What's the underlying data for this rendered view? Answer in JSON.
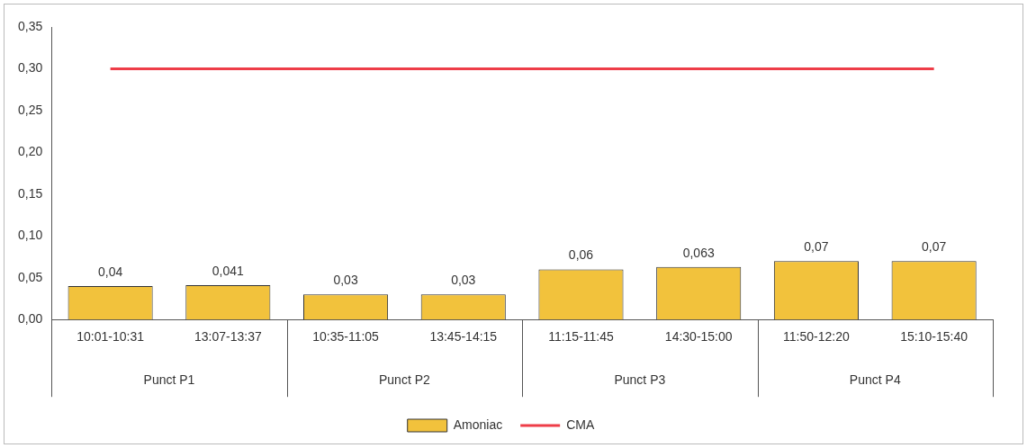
{
  "chart_data": {
    "type": "bar",
    "categories": [
      "10:01-10:31",
      "13:07-13:37",
      "10:35-11:05",
      "13:45-14:15",
      "11:15-11:45",
      "14:30-15:00",
      "11:50-12:20",
      "15:10-15:40"
    ],
    "series": [
      {
        "name": "Amoniac",
        "color": "#f2c23c",
        "values": [
          0.04,
          0.041,
          0.03,
          0.03,
          0.06,
          0.063,
          0.07,
          0.07
        ],
        "value_labels": [
          "0,04",
          "0,041",
          "0,03",
          "0,03",
          "0,06",
          "0,063",
          "0,07",
          "0,07"
        ]
      },
      {
        "name": "CMA",
        "type": "line",
        "color": "#ee3d48",
        "values": [
          0.3,
          0.3,
          0.3,
          0.3,
          0.3,
          0.3,
          0.3,
          0.3
        ]
      }
    ],
    "annotations": [
      "Punct P1",
      "Punct P2",
      "Punct P3",
      "Punct P4"
    ],
    "ylim": [
      0,
      0.35
    ],
    "yticks": [
      {
        "value": 0,
        "label": "0,00"
      },
      {
        "value": 0.05,
        "label": "0,05"
      },
      {
        "value": 0.1,
        "label": "0,10"
      },
      {
        "value": 0.15,
        "label": "0,15"
      },
      {
        "value": 0.2,
        "label": "0,20"
      },
      {
        "value": 0.25,
        "label": "0,25"
      },
      {
        "value": 0.3,
        "label": "0,30"
      },
      {
        "value": 0.35,
        "label": "0,35"
      }
    ],
    "grid": false,
    "legend": "bottom",
    "marker": "none"
  }
}
